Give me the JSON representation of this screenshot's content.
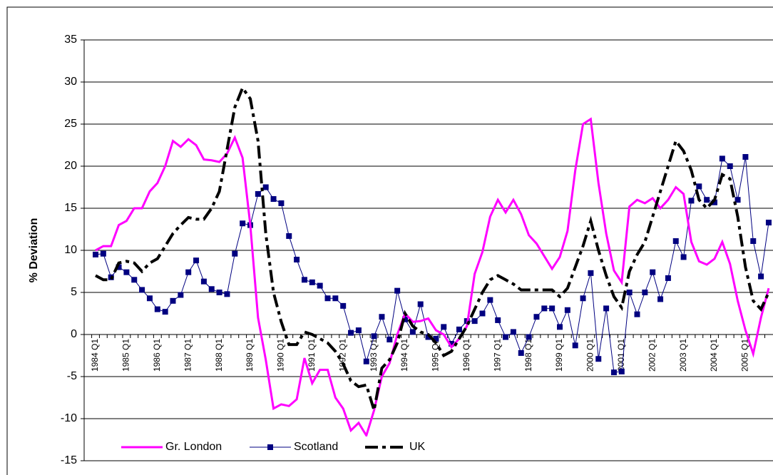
{
  "chart_data": {
    "type": "line",
    "y_label": "% Deviation",
    "categories": [
      "1984 Q1",
      null,
      null,
      null,
      "1985 Q1",
      null,
      null,
      null,
      "1986 Q1",
      null,
      null,
      null,
      "1987 Q1",
      null,
      null,
      null,
      "1988 Q1",
      null,
      null,
      null,
      "1989 Q1",
      null,
      null,
      null,
      "1990 Q1",
      null,
      null,
      null,
      "1991 Q1",
      null,
      null,
      null,
      "1992 Q1",
      null,
      null,
      null,
      "1993 Q1",
      null,
      null,
      null,
      "1994 Q1",
      null,
      null,
      null,
      "1995 Q1",
      null,
      null,
      null,
      "1996 Q1",
      null,
      null,
      null,
      "1997 Q1",
      null,
      null,
      null,
      "1998 Q1",
      null,
      null,
      null,
      "1999 Q1",
      null,
      null,
      null,
      "2000 Q1",
      null,
      null,
      null,
      "2001 Q1",
      null,
      null,
      null,
      "2002 Q1",
      null,
      null,
      null,
      "2003 Q1",
      null,
      null,
      null,
      "2004 Q1",
      null,
      null,
      null,
      "2005 Q1",
      null,
      null,
      null
    ],
    "series": [
      {
        "name": "Gr. London",
        "color": "#ff00ff",
        "style": "solid",
        "values": [
          10,
          10.5,
          10.5,
          13,
          13.5,
          15,
          15,
          17,
          18,
          20,
          23,
          22.3,
          23.2,
          22.5,
          20.8,
          20.7,
          20.5,
          21.5,
          23.4,
          21,
          13,
          2,
          -3,
          -8.8,
          -8.3,
          -8.5,
          -7.7,
          -2.8,
          -5.8,
          -4.2,
          -4.2,
          -7.5,
          -8.8,
          -11.4,
          -10.5,
          -12,
          -9,
          -5,
          -3.4,
          0,
          2.5,
          1.5,
          1.6,
          1.9,
          0.5,
          0,
          -1.5,
          -0.5,
          1,
          7.2,
          9.8,
          14,
          16,
          14.5,
          16,
          14.3,
          11.8,
          10.8,
          9.3,
          7.8,
          9.2,
          12.3,
          19.5,
          25,
          25.6,
          18,
          12,
          7.6,
          6.2,
          15.2,
          16,
          15.6,
          16.2,
          15,
          16,
          17.5,
          16.7,
          11,
          8.7,
          8.3,
          9,
          11,
          8.4,
          4,
          0.5,
          -2.3,
          2,
          5.5
        ]
      },
      {
        "name": "Scotland",
        "color": "#000080",
        "style": "marker",
        "values": [
          9.5,
          9.6,
          6.8,
          8,
          7.4,
          6.5,
          5.3,
          4.3,
          3,
          2.7,
          4,
          4.7,
          7.4,
          8.8,
          6.3,
          5.4,
          5,
          4.8,
          9.6,
          13.2,
          13,
          16.7,
          17.5,
          16.1,
          15.6,
          11.7,
          8.9,
          6.5,
          6.2,
          5.8,
          4.3,
          4.3,
          3.4,
          0.2,
          0.5,
          -3.2,
          -0.2,
          2.1,
          -0.6,
          5.2,
          1.8,
          0.3,
          3.6,
          -0.3,
          -0.5,
          0.9,
          -1.1,
          0.6,
          1.6,
          1.6,
          2.5,
          4.1,
          1.7,
          -0.3,
          0.3,
          -2.2,
          -0.3,
          2.1,
          3.1,
          3.1,
          0.9,
          2.9,
          -1.3,
          4.3,
          7.3,
          -2.9,
          3.1,
          -4.5,
          -4.4,
          5,
          2.4,
          5,
          7.4,
          4.2,
          6.7,
          11.1,
          9.2,
          15.9,
          17.6,
          16,
          15.7,
          20.9,
          20,
          16,
          21.1,
          11.1,
          6.9,
          13.3
        ]
      },
      {
        "name": "UK",
        "color": "#000000",
        "style": "dashed",
        "values": [
          7,
          6.5,
          6.5,
          8.5,
          8.7,
          8.5,
          7.5,
          8.5,
          9,
          10.5,
          12,
          13,
          13.9,
          13.7,
          13.7,
          15,
          17,
          22,
          27,
          29.3,
          28,
          23,
          12,
          5,
          1.5,
          -1.2,
          -1.2,
          0.3,
          0,
          -0.5,
          -1,
          -2,
          -3.5,
          -5.5,
          -6.2,
          -6,
          -9,
          -4,
          -3,
          -1,
          2.5,
          1,
          0.3,
          0,
          -1,
          -2.5,
          -2,
          -0.5,
          1,
          3,
          5,
          6.5,
          7,
          6.5,
          6,
          5.3,
          5.3,
          5.3,
          5.3,
          5.3,
          4.5,
          5.5,
          8,
          10.5,
          13.5,
          10,
          7,
          4.5,
          3.2,
          7.5,
          9.5,
          11,
          14,
          17,
          20,
          23,
          21.8,
          19.5,
          16,
          15,
          16,
          19,
          18.5,
          14,
          8,
          4,
          3,
          5
        ]
      }
    ],
    "ylim": [
      -15,
      35
    ],
    "yticks": [
      -15,
      -10,
      -5,
      0,
      5,
      10,
      15,
      20,
      25,
      30,
      35
    ],
    "grid": true,
    "legend": "bottom-left"
  }
}
